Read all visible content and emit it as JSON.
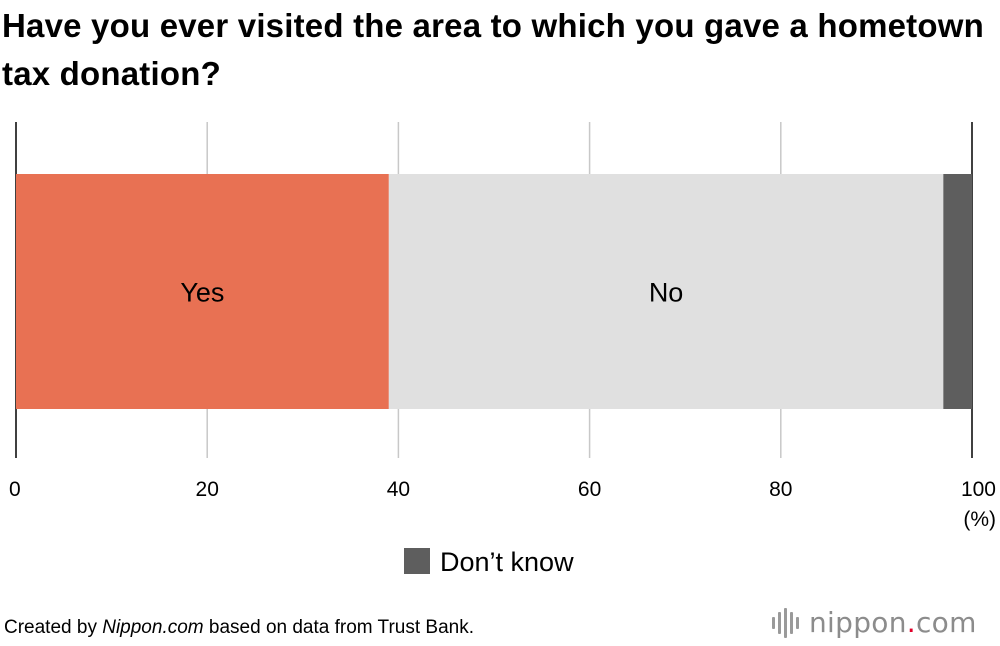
{
  "title": "Have you ever visited the area to which you gave a hometown tax donation?",
  "chart_data": {
    "type": "bar",
    "orientation": "horizontal",
    "stacked": true,
    "categories": [
      ""
    ],
    "series": [
      {
        "name": "Yes",
        "values": [
          39
        ],
        "color": "#e87153",
        "label_on_bar": true
      },
      {
        "name": "No",
        "values": [
          58
        ],
        "color": "#e0e0e0",
        "label_on_bar": true
      },
      {
        "name": "Don’t know",
        "values": [
          3
        ],
        "color": "#5e5e5e",
        "label_on_bar": false
      }
    ],
    "xlim": [
      0,
      100
    ],
    "xticks": [
      0,
      20,
      40,
      60,
      80,
      100
    ],
    "xunit": "(%)",
    "grid": true,
    "legend": {
      "position": "bottom-center",
      "entries": [
        "Don’t know"
      ]
    }
  },
  "source": {
    "prefix": "Created by ",
    "publisher": "Nippon.com",
    "suffix": " based on data from Trust Bank."
  },
  "logo": {
    "name": "nippon",
    "dot": ".",
    "tld": "com"
  }
}
